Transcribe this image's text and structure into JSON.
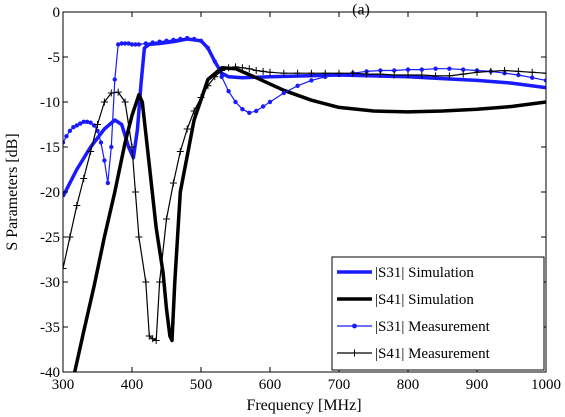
{
  "chart_data": {
    "type": "line",
    "title": "(a)",
    "xlabel": "Frequency [MHz]",
    "ylabel": "S Parameters [dB]",
    "xlim": [
      300,
      1000
    ],
    "ylim": [
      -40,
      0
    ],
    "xticks": [
      300,
      400,
      500,
      600,
      700,
      800,
      900,
      1000
    ],
    "yticks": [
      0,
      -5,
      -10,
      -15,
      -20,
      -25,
      -30,
      -35,
      -40
    ],
    "grid": false,
    "legend_position": "bottom-right",
    "series": [
      {
        "name": "|S31| Simulation",
        "color": "#1a1aff",
        "style": "thick",
        "marker": "none",
        "x": [
          300,
          320,
          340,
          360,
          375,
          385,
          395,
          402,
          408,
          413,
          418,
          425,
          440,
          460,
          480,
          500,
          510,
          520,
          530,
          540,
          560,
          600,
          650,
          700,
          750,
          800,
          850,
          900,
          950,
          1000
        ],
        "y": [
          -20.5,
          -17.5,
          -15,
          -13,
          -12,
          -12.5,
          -15,
          -16.2,
          -13,
          -8,
          -4,
          -3.6,
          -3.5,
          -3.3,
          -3.0,
          -3.2,
          -4,
          -5.5,
          -6.8,
          -7.2,
          -7.3,
          -7.2,
          -7.1,
          -7.0,
          -7.1,
          -7.2,
          -7.4,
          -7.6,
          -7.9,
          -8.4
        ]
      },
      {
        "name": "|S41| Simulation",
        "color": "#000000",
        "style": "thick",
        "marker": "none",
        "x": [
          317,
          330,
          345,
          360,
          375,
          390,
          400,
          410,
          415,
          425,
          435,
          445,
          450,
          455,
          458,
          462,
          470,
          490,
          510,
          530,
          550,
          580,
          620,
          660,
          700,
          750,
          800,
          850,
          900,
          950,
          1000
        ],
        "y": [
          -40,
          -35.5,
          -30.5,
          -25,
          -20,
          -14.5,
          -11.5,
          -9.2,
          -10,
          -17,
          -24,
          -29,
          -33,
          -36,
          -36.5,
          -30,
          -20,
          -12,
          -7.5,
          -6.2,
          -6.3,
          -7.3,
          -8.7,
          -9.8,
          -10.6,
          -11.0,
          -11.1,
          -11.0,
          -10.8,
          -10.5,
          -10.0
        ]
      },
      {
        "name": "|S31| Measurement",
        "color": "#1a1aff",
        "style": "thin",
        "marker": "dot",
        "x": [
          300,
          305,
          310,
          315,
          320,
          325,
          330,
          335,
          340,
          345,
          350,
          355,
          360,
          365,
          370,
          375,
          380,
          385,
          390,
          395,
          400,
          405,
          410,
          420,
          430,
          440,
          450,
          460,
          470,
          480,
          490,
          500,
          510,
          520,
          530,
          540,
          550,
          560,
          570,
          580,
          590,
          600,
          620,
          640,
          660,
          680,
          700,
          720,
          740,
          760,
          780,
          800,
          820,
          840,
          860,
          880,
          900,
          920,
          940,
          960,
          980,
          1000
        ],
        "y": [
          -14.5,
          -13.8,
          -13.2,
          -12.8,
          -12.6,
          -12.4,
          -12.2,
          -12.2,
          -12.3,
          -12.6,
          -13.2,
          -14.5,
          -16.5,
          -19,
          -15,
          -7.5,
          -3.6,
          -3.5,
          -3.5,
          -3.5,
          -3.6,
          -3.6,
          -3.6,
          -3.5,
          -3.4,
          -3.3,
          -3.2,
          -3.1,
          -3.0,
          -2.9,
          -3.0,
          -3.2,
          -4.0,
          -5.5,
          -7.2,
          -8.8,
          -10.0,
          -10.8,
          -11.2,
          -11.0,
          -10.5,
          -10.0,
          -9.0,
          -8.2,
          -7.6,
          -7.2,
          -7.0,
          -6.8,
          -6.6,
          -6.5,
          -6.5,
          -6.4,
          -6.4,
          -6.3,
          -6.3,
          -6.4,
          -6.5,
          -6.6,
          -6.8,
          -7.0,
          -7.3,
          -7.6
        ]
      },
      {
        "name": "|S41| Measurement",
        "color": "#000000",
        "style": "thin",
        "marker": "plus",
        "x": [
          300,
          310,
          320,
          330,
          340,
          350,
          360,
          370,
          380,
          390,
          400,
          405,
          410,
          420,
          425,
          430,
          435,
          440,
          450,
          460,
          470,
          480,
          490,
          500,
          510,
          520,
          530,
          540,
          550,
          560,
          570,
          580,
          590,
          600,
          620,
          640,
          660,
          680,
          700,
          720,
          740,
          760,
          780,
          800,
          820,
          840,
          860,
          880,
          900,
          920,
          940,
          960,
          980,
          1000
        ],
        "y": [
          -28.5,
          -25,
          -21.5,
          -18.5,
          -15.5,
          -12.5,
          -10,
          -9.0,
          -8.9,
          -10,
          -15,
          -20,
          -25,
          -30,
          -36,
          -36.3,
          -36.5,
          -30,
          -23,
          -19,
          -15.5,
          -13,
          -11,
          -9.5,
          -8.2,
          -7.2,
          -6.5,
          -6.2,
          -6.1,
          -6.2,
          -6.3,
          -6.5,
          -6.6,
          -6.7,
          -6.8,
          -6.8,
          -6.8,
          -6.8,
          -6.8,
          -6.8,
          -6.9,
          -6.9,
          -7.0,
          -7.0,
          -7.0,
          -7.1,
          -7.1,
          -6.9,
          -6.7,
          -6.6,
          -6.5,
          -6.6,
          -6.7,
          -6.8
        ]
      }
    ]
  }
}
